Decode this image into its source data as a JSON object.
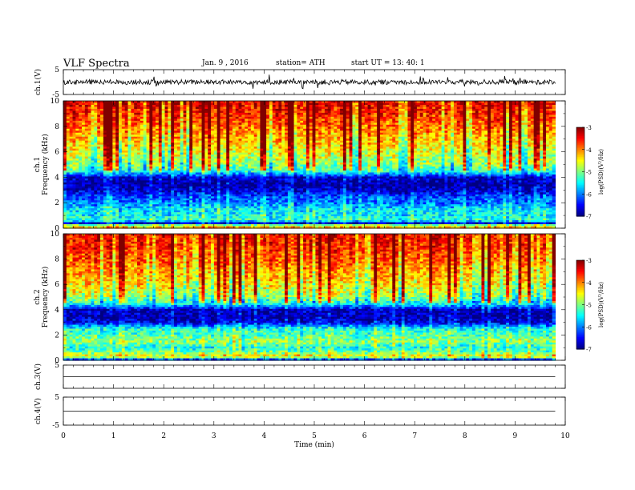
{
  "header": {
    "title": "VLF  Spectra",
    "date": "Jan. 9  , 2016",
    "station": "station= ATH",
    "start": "start  UT  =   13: 40: 1"
  },
  "chart_data": [
    {
      "type": "line",
      "panel": "ch1-waveform",
      "ylabel": "ch.1(V)",
      "ylim": [
        -5,
        5
      ],
      "yticks": [
        "5",
        "-5"
      ],
      "xlim": [
        0,
        10
      ],
      "x_extent": [
        0,
        9.8
      ],
      "description_values": {
        "baseline": 0,
        "typical_amplitude": 1,
        "spike_amplitude": 2.5
      },
      "color": "#000000"
    },
    {
      "type": "heatmap",
      "panel": "ch1-spectrogram",
      "ylabel_line1": "ch.1",
      "ylabel_line2": "Frequency  (kHz)",
      "xlim": [
        0,
        10
      ],
      "x_extent": [
        0,
        9.8
      ],
      "ylim": [
        0,
        10
      ],
      "yticks": [
        "0",
        "2",
        "4",
        "6",
        "8",
        "10"
      ],
      "z_by_frequency_khz": [
        [
          0.0,
          -4.2
        ],
        [
          0.2,
          -4.6
        ],
        [
          0.4,
          -6.8
        ],
        [
          0.6,
          -5.3
        ],
        [
          1.0,
          -5.5
        ],
        [
          1.5,
          -5.6
        ],
        [
          2.0,
          -6.0
        ],
        [
          2.5,
          -6.2
        ],
        [
          3.0,
          -6.7
        ],
        [
          3.5,
          -6.9
        ],
        [
          4.0,
          -6.6
        ],
        [
          4.5,
          -5.3
        ],
        [
          5.0,
          -4.9
        ],
        [
          6.0,
          -4.6
        ],
        [
          7.0,
          -4.2
        ],
        [
          8.0,
          -3.9
        ],
        [
          9.0,
          -3.6
        ],
        [
          10.0,
          -3.4
        ]
      ],
      "colorbar": {
        "label": "log(PSD)(V²/Hz)",
        "ticks": [
          "-3",
          "-4",
          "-5",
          "-6",
          "-7"
        ],
        "range": [
          -7,
          -3
        ]
      }
    },
    {
      "type": "heatmap",
      "panel": "ch2-spectrogram",
      "ylabel_line1": "ch.2",
      "ylabel_line2": "Frequency  (kHz)",
      "xlim": [
        0,
        10
      ],
      "x_extent": [
        0,
        9.8
      ],
      "ylim": [
        0,
        10
      ],
      "yticks": [
        "0",
        "2",
        "4",
        "6",
        "8",
        "10"
      ],
      "z_by_frequency_khz": [
        [
          0.0,
          -6.8
        ],
        [
          0.3,
          -4.3
        ],
        [
          0.6,
          -5.0
        ],
        [
          1.0,
          -5.4
        ],
        [
          1.5,
          -4.9
        ],
        [
          2.0,
          -5.2
        ],
        [
          2.5,
          -5.4
        ],
        [
          3.0,
          -6.6
        ],
        [
          3.5,
          -6.8
        ],
        [
          4.0,
          -6.7
        ],
        [
          4.5,
          -5.4
        ],
        [
          5.0,
          -4.8
        ],
        [
          6.0,
          -4.4
        ],
        [
          7.0,
          -4.1
        ],
        [
          8.0,
          -3.8
        ],
        [
          9.0,
          -3.6
        ],
        [
          10.0,
          -3.5
        ]
      ],
      "colorbar": {
        "label": "log(PSD)(V²/Hz)",
        "ticks": [
          "-3",
          "-4",
          "-5",
          "-6",
          "-7"
        ],
        "range": [
          -7,
          -3
        ]
      }
    },
    {
      "type": "line",
      "panel": "ch3-waveform",
      "ylabel": "ch.3(V)",
      "ylim": [
        -5,
        5
      ],
      "yticks": [
        "5",
        ""
      ],
      "xlim": [
        0,
        10
      ],
      "x_extent": [
        0,
        9.8
      ],
      "description_values": {
        "baseline": 0
      },
      "color": "#000000"
    },
    {
      "type": "line",
      "panel": "ch4-waveform",
      "ylabel": "ch.4(V)",
      "ylim": [
        -5,
        5
      ],
      "yticks": [
        "5",
        "-5"
      ],
      "xlim": [
        0,
        10
      ],
      "x_extent": [
        0,
        9.8
      ],
      "description_values": {
        "baseline": 0
      },
      "color": "#000000"
    }
  ],
  "xaxis": {
    "label": "Time  (min)",
    "ticks": [
      "0",
      "1",
      "2",
      "3",
      "4",
      "5",
      "6",
      "7",
      "8",
      "9",
      "10"
    ]
  }
}
